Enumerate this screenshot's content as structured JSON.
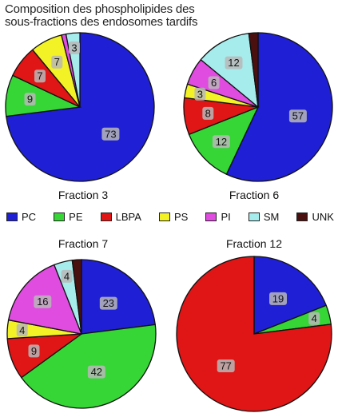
{
  "title_lines": [
    "Composition des phospholipides des",
    "sous-fractions des endosomes tardifs"
  ],
  "colors": {
    "PC": "#1f1fd6",
    "PE": "#35d635",
    "LBPA": "#e01515",
    "PS": "#f2f226",
    "PI": "#e04be0",
    "SM": "#a6ecec",
    "UNK": "#4a0f0f"
  },
  "legend": [
    {
      "key": "PC",
      "label": "PC"
    },
    {
      "key": "PE",
      "label": "PE"
    },
    {
      "key": "LBPA",
      "label": "LBPA"
    },
    {
      "key": "PS",
      "label": "PS"
    },
    {
      "key": "PI",
      "label": "PI"
    },
    {
      "key": "SM",
      "label": "SM"
    },
    {
      "key": "UNK",
      "label": "UNK"
    }
  ],
  "chart_data": [
    {
      "type": "pie",
      "title": "Fraction 3",
      "slices": [
        {
          "category": "PC",
          "value": 73,
          "label": "73"
        },
        {
          "category": "PE",
          "value": 9,
          "label": "9"
        },
        {
          "category": "LBPA",
          "value": 7,
          "label": "7"
        },
        {
          "category": "PS",
          "value": 7,
          "label": "7"
        },
        {
          "category": "PI",
          "value": 1,
          "label": ""
        },
        {
          "category": "SM",
          "value": 3,
          "label": "3"
        },
        {
          "category": "UNK",
          "value": 0,
          "label": ""
        }
      ]
    },
    {
      "type": "pie",
      "title": "Fraction 6",
      "slices": [
        {
          "category": "PC",
          "value": 57,
          "label": "57"
        },
        {
          "category": "PE",
          "value": 12,
          "label": "12"
        },
        {
          "category": "LBPA",
          "value": 8,
          "label": "8"
        },
        {
          "category": "PS",
          "value": 3,
          "label": "3"
        },
        {
          "category": "PI",
          "value": 6,
          "label": "6"
        },
        {
          "category": "SM",
          "value": 12,
          "label": "12"
        },
        {
          "category": "UNK",
          "value": 2,
          "label": ""
        }
      ]
    },
    {
      "type": "pie",
      "title": "Fraction 7",
      "slices": [
        {
          "category": "PC",
          "value": 23,
          "label": "23"
        },
        {
          "category": "PE",
          "value": 42,
          "label": "42"
        },
        {
          "category": "LBPA",
          "value": 9,
          "label": "9"
        },
        {
          "category": "PS",
          "value": 4,
          "label": "4"
        },
        {
          "category": "PI",
          "value": 16,
          "label": "16"
        },
        {
          "category": "SM",
          "value": 4,
          "label": "4"
        },
        {
          "category": "UNK",
          "value": 2,
          "label": ""
        }
      ]
    },
    {
      "type": "pie",
      "title": "Fraction 12",
      "slices": [
        {
          "category": "PC",
          "value": 19,
          "label": "19"
        },
        {
          "category": "PE",
          "value": 4,
          "label": "4"
        },
        {
          "category": "LBPA",
          "value": 77,
          "label": "77"
        }
      ]
    }
  ]
}
